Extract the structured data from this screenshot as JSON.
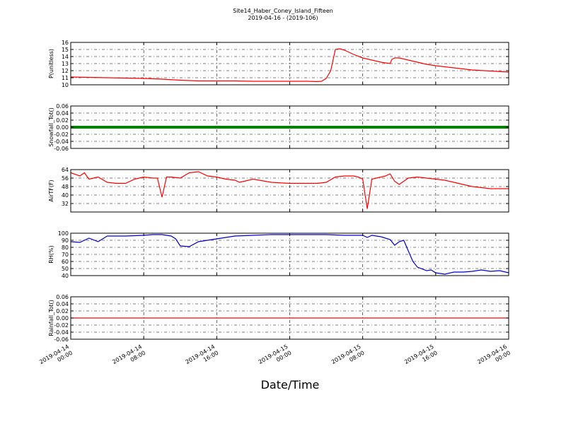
{
  "chart_data": {
    "title": "Site14_Haber_Coney_Island_Fifteen",
    "subtitle": "2019-04-16 - (2019-106)",
    "xlabel": "Date/Time",
    "x_ticks": [
      [
        "2019-04-14",
        "00:00"
      ],
      [
        "2019-04-14",
        "08:00"
      ],
      [
        "2019-04-14",
        "16:00"
      ],
      [
        "2019-04-15",
        "00:00"
      ],
      [
        "2019-04-15",
        "08:00"
      ],
      [
        "2019-04-15",
        "16:00"
      ],
      [
        "2019-04-16",
        "00:00"
      ]
    ],
    "x_range_hours": [
      0,
      48
    ],
    "grid": true,
    "panels": [
      {
        "type": "line",
        "ylabel": "P(unitless)",
        "ylim": [
          10,
          16
        ],
        "yticks": [
          10,
          11,
          12,
          13,
          14,
          15,
          16
        ],
        "color": "#ff0000",
        "series": [
          {
            "x": [
              0,
              2,
              4,
              6,
              8,
              10,
              12,
              14,
              16,
              18,
              20,
              22,
              24,
              26,
              27,
              27.5,
              28,
              28.5,
              29,
              29.5,
              30,
              31,
              32,
              33,
              34,
              34.5,
              35,
              35.2,
              35.5,
              36,
              37,
              38,
              39,
              40,
              42,
              44,
              46,
              48
            ],
            "y": [
              11.1,
              11.05,
              11.0,
              10.95,
              10.9,
              10.8,
              10.65,
              10.55,
              10.55,
              10.55,
              10.5,
              10.5,
              10.5,
              10.5,
              10.45,
              10.5,
              10.9,
              12.0,
              15.0,
              15.1,
              14.9,
              14.3,
              13.8,
              13.5,
              13.2,
              13.1,
              13.0,
              13.6,
              13.8,
              13.8,
              13.5,
              13.2,
              12.9,
              12.7,
              12.4,
              12.1,
              11.95,
              11.8
            ]
          }
        ]
      },
      {
        "type": "scatter",
        "ylabel": "Snowfall_Tot()",
        "ylim": [
          -0.06,
          0.06
        ],
        "yticks": [
          -0.06,
          -0.04,
          -0.02,
          0.0,
          0.02,
          0.04,
          0.06
        ],
        "color": "#008000",
        "series": [
          {
            "x": [
              0,
              48
            ],
            "y": [
              0.0,
              0.0
            ]
          }
        ]
      },
      {
        "type": "line",
        "ylabel": "AirTF(F)",
        "ylim": [
          24,
          64
        ],
        "yticks": [
          32,
          40,
          48,
          56,
          64
        ],
        "color": "#ff0000",
        "series": [
          {
            "x": [
              0,
              1,
              1.5,
              2,
              2.5,
              3,
              4,
              5,
              6,
              7,
              8,
              9,
              9.5,
              10,
              10.5,
              11,
              12,
              13,
              14,
              15,
              16,
              17,
              18,
              18.5,
              19,
              20,
              22,
              24,
              26,
              27,
              28,
              29,
              30,
              31,
              31.5,
              32,
              32.5,
              33,
              34,
              34.5,
              35,
              35.5,
              36,
              37,
              38,
              39,
              40,
              41,
              42,
              44,
              46,
              48
            ],
            "y": [
              61,
              58,
              61,
              55,
              56,
              57,
              52,
              51,
              51,
              55,
              57,
              56,
              56,
              38,
              57,
              57,
              56,
              61,
              62,
              58,
              57,
              55,
              54,
              52,
              53,
              55,
              52,
              51,
              51,
              51,
              52,
              57,
              58,
              58,
              57,
              55,
              27,
              55,
              57,
              58,
              60,
              53,
              50,
              56,
              57,
              56,
              55,
              54,
              52,
              48,
              46,
              46
            ]
          }
        ]
      },
      {
        "type": "line",
        "ylabel": "RH(%)",
        "ylim": [
          40,
          100
        ],
        "yticks": [
          40,
          50,
          60,
          70,
          80,
          90,
          100
        ],
        "color": "#0000cc",
        "series": [
          {
            "x": [
              0,
              1,
              2,
              3,
              4,
              6,
              8,
              9,
              10,
              10.5,
              11,
              11.5,
              12,
              13,
              14,
              16,
              18,
              20,
              22,
              24,
              26,
              28,
              30,
              31,
              32,
              32.5,
              33,
              34,
              35,
              35.5,
              36,
              36.5,
              37,
              37.5,
              38,
              39,
              39.5,
              40,
              41,
              42,
              43,
              44,
              45,
              46,
              47,
              48
            ],
            "y": [
              88,
              87,
              93,
              88,
              96,
              96,
              97,
              98,
              98,
              97,
              96,
              92,
              82,
              81,
              88,
              92,
              96,
              97,
              98,
              98,
              98,
              98,
              97,
              97,
              97,
              94,
              97,
              95,
              91,
              83,
              88,
              90,
              75,
              60,
              52,
              47,
              48,
              44,
              42,
              45,
              45,
              46,
              48,
              46,
              47,
              44
            ]
          }
        ]
      },
      {
        "type": "line",
        "ylabel": "Rainfall_Tot()",
        "ylim": [
          -0.06,
          0.06
        ],
        "yticks": [
          -0.06,
          -0.04,
          -0.02,
          0.0,
          0.02,
          0.04,
          0.06
        ],
        "color": "#ff0000",
        "series": [
          {
            "x": [
              0,
              48
            ],
            "y": [
              0.0,
              0.0
            ]
          }
        ]
      }
    ]
  }
}
